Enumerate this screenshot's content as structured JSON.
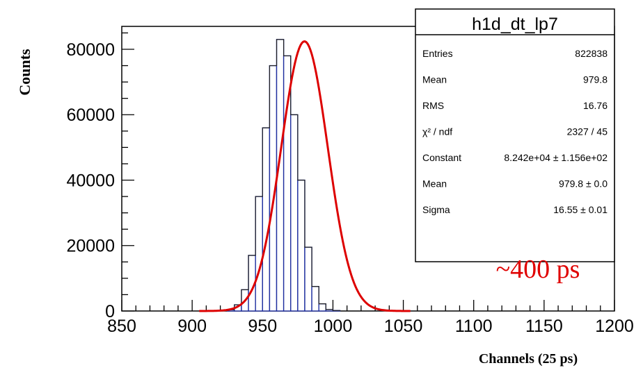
{
  "chart_data": {
    "type": "bar",
    "subtype": "histogram-with-gaussian-fit",
    "xlabel": "Channels (25 ps)",
    "ylabel": "Counts",
    "xlim": [
      850,
      1200
    ],
    "ylim": [
      0,
      87000
    ],
    "x_ticks": [
      850,
      900,
      950,
      1000,
      1050,
      1100,
      1150,
      1200
    ],
    "y_ticks": [
      0,
      20000,
      40000,
      60000,
      80000
    ],
    "x_tick_labels": [
      "850",
      "900",
      "950",
      "1000",
      "1050",
      "1100",
      "1150",
      "1200"
    ],
    "y_tick_labels": [
      "0",
      "20000",
      "40000",
      "60000",
      "80000"
    ],
    "bin_width": 5,
    "bin_edges_start": 925,
    "bin_counts": [
      400,
      1900,
      6500,
      17000,
      35000,
      56000,
      75000,
      83000,
      78000,
      60000,
      40000,
      19500,
      7500,
      2200,
      450,
      150
    ],
    "fit": {
      "function": "gaus",
      "constant": 82420,
      "mean": 979.8,
      "sigma": 16.55,
      "color": "#dd0000"
    },
    "histogram_color": "#1f2f9f",
    "stats_box": {
      "title": "h1d_dt_lp7",
      "rows": [
        {
          "label": "Entries",
          "value": "822838"
        },
        {
          "label": "Mean",
          "value": "979.8"
        },
        {
          "label": "RMS",
          "value": "16.76"
        },
        {
          "label": "χ² / ndf",
          "value": "2327 / 45"
        },
        {
          "label": "Constant",
          "value": "8.242e+04 ± 1.156e+02"
        },
        {
          "label": "Mean",
          "value": "979.8 ± 0.0"
        },
        {
          "label": "Sigma",
          "value": "16.55 ± 0.01"
        }
      ]
    },
    "annotation": {
      "text": "~400 ps",
      "color": "#e00000"
    }
  }
}
